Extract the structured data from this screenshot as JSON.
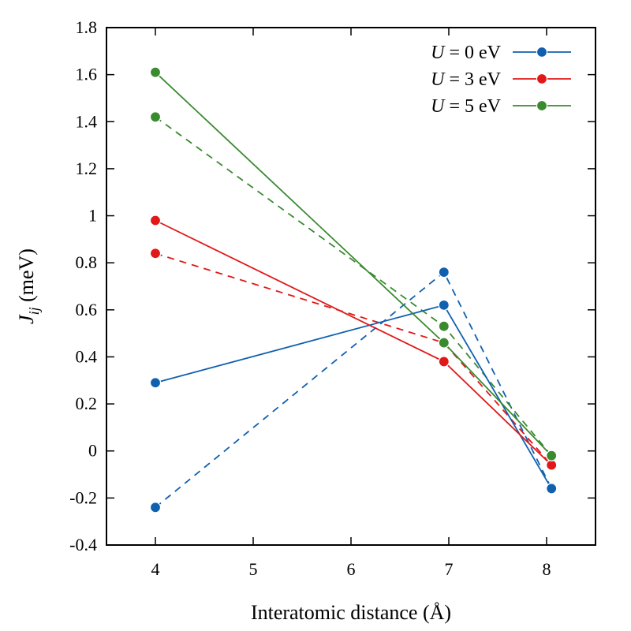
{
  "chart_data": {
    "type": "line",
    "xlabel": "Interatomic distance (Å)",
    "ylabel": {
      "main": "J",
      "sub": "ij",
      "unit": " (meV)"
    },
    "xlim": [
      3.5,
      8.5
    ],
    "ylim": [
      -0.4,
      1.8
    ],
    "x_ticks": [
      4,
      5,
      6,
      7,
      8
    ],
    "y_ticks": [
      -0.4,
      -0.2,
      0,
      0.2,
      0.4,
      0.6,
      0.8,
      1,
      1.2,
      1.4,
      1.6,
      1.8
    ],
    "y_tick_labels": [
      "-0.4",
      "-0.2",
      "0",
      "0.2",
      "0.4",
      "0.6",
      "0.8",
      "1",
      "1.2",
      "1.4",
      "1.6",
      "1.8"
    ],
    "grid": false,
    "legend_placement": "top-right",
    "series": [
      {
        "name": "U = 0 eV",
        "label_var": "U",
        "label_rest": " = 0 eV",
        "color": "#1060b0",
        "solid": {
          "x": [
            4.0,
            6.95,
            8.05
          ],
          "y": [
            0.29,
            0.62,
            -0.16
          ]
        },
        "dashed": {
          "x": [
            4.0,
            6.95,
            8.05
          ],
          "y": [
            -0.24,
            0.76,
            -0.16
          ]
        }
      },
      {
        "name": "U = 3 eV",
        "label_var": "U",
        "label_rest": " = 3 eV",
        "color": "#e01818",
        "solid": {
          "x": [
            4.0,
            6.95,
            8.05
          ],
          "y": [
            0.98,
            0.38,
            -0.06
          ]
        },
        "dashed": {
          "x": [
            4.0,
            6.95,
            8.05
          ],
          "y": [
            0.84,
            0.46,
            -0.06
          ]
        }
      },
      {
        "name": "U = 5 eV",
        "label_var": "U",
        "label_rest": " = 5 eV",
        "color": "#3a8a30",
        "solid": {
          "x": [
            4.0,
            6.95,
            8.05
          ],
          "y": [
            1.61,
            0.46,
            -0.02
          ]
        },
        "dashed": {
          "x": [
            4.0,
            6.95,
            8.05
          ],
          "y": [
            1.42,
            0.53,
            -0.02
          ]
        }
      }
    ]
  }
}
